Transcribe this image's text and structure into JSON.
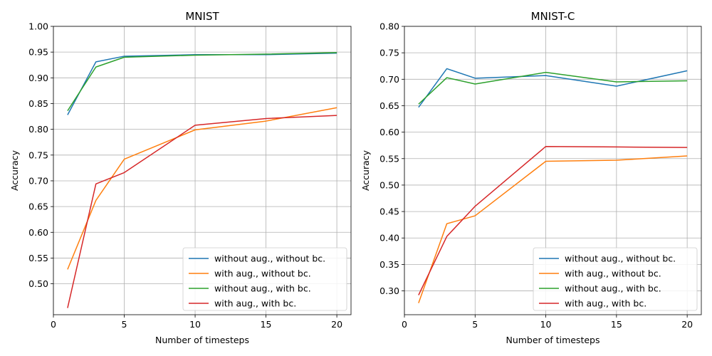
{
  "chart_data": [
    {
      "type": "line",
      "title": "MNIST",
      "xlabel": "Number of timesteps",
      "ylabel": "Accuracy",
      "xlim": [
        0,
        21
      ],
      "ylim": [
        0.44,
        1.0
      ],
      "xticks": [
        0,
        5,
        10,
        15,
        20
      ],
      "yticks": [
        0.5,
        0.55,
        0.6,
        0.65,
        0.7,
        0.75,
        0.8,
        0.85,
        0.9,
        0.95,
        1.0
      ],
      "grid": true,
      "legend_position": "lower right",
      "x": [
        1,
        3,
        5,
        10,
        15,
        20
      ],
      "series": [
        {
          "name": "without aug., without bc.",
          "color": "#1f77b4",
          "values": [
            0.828,
            0.931,
            0.942,
            0.945,
            0.945,
            0.948
          ]
        },
        {
          "name": "with aug., without bc.",
          "color": "#ff7f0e",
          "values": [
            0.528,
            0.662,
            0.742,
            0.799,
            0.816,
            0.842
          ]
        },
        {
          "name": "without aug., with bc.",
          "color": "#2ca02c",
          "values": [
            0.836,
            0.921,
            0.94,
            0.944,
            0.946,
            0.949
          ]
        },
        {
          "name": "with aug., with bc.",
          "color": "#d62728",
          "values": [
            0.453,
            0.694,
            0.716,
            0.808,
            0.821,
            0.827
          ]
        }
      ]
    },
    {
      "type": "line",
      "title": "MNIST-C",
      "xlabel": "Number of timesteps",
      "ylabel": "Accuracy",
      "xlim": [
        0,
        21
      ],
      "ylim": [
        0.255,
        0.8
      ],
      "xticks": [
        0,
        5,
        10,
        15,
        20
      ],
      "yticks": [
        0.3,
        0.35,
        0.4,
        0.45,
        0.5,
        0.55,
        0.6,
        0.65,
        0.7,
        0.75,
        0.8
      ],
      "grid": true,
      "legend_position": "lower right",
      "x": [
        1,
        3,
        5,
        10,
        15,
        20
      ],
      "series": [
        {
          "name": "without aug., without bc.",
          "color": "#1f77b4",
          "values": [
            0.647,
            0.72,
            0.702,
            0.707,
            0.687,
            0.716
          ]
        },
        {
          "name": "with aug., without bc.",
          "color": "#ff7f0e",
          "values": [
            0.277,
            0.427,
            0.442,
            0.545,
            0.547,
            0.555
          ]
        },
        {
          "name": "without aug., with bc.",
          "color": "#2ca02c",
          "values": [
            0.653,
            0.703,
            0.691,
            0.713,
            0.695,
            0.697
          ]
        },
        {
          "name": "with aug., with bc.",
          "color": "#d62728",
          "values": [
            0.292,
            0.403,
            0.46,
            0.573,
            0.572,
            0.571
          ]
        }
      ]
    }
  ]
}
